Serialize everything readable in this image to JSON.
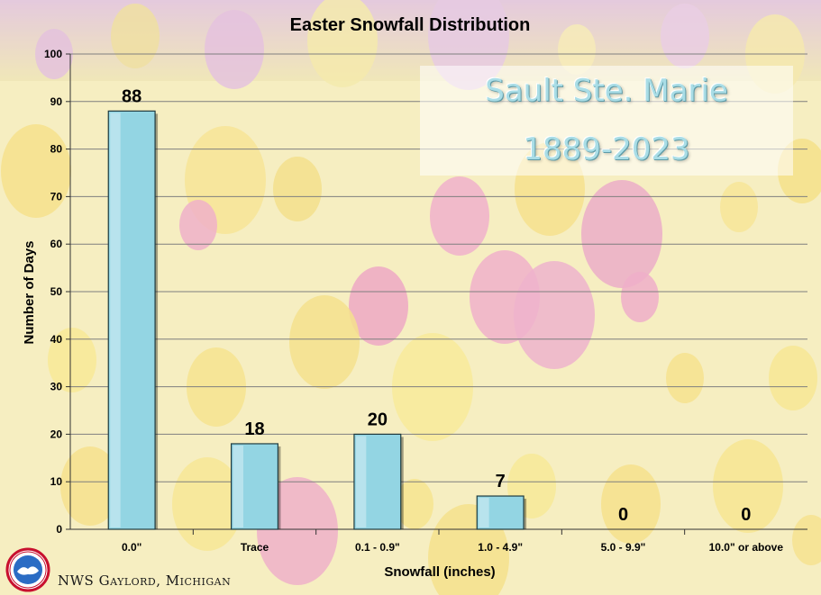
{
  "colors": {
    "bar_fill": "#93d5e3",
    "bar_edge": "#1f3b40",
    "title_text": "#a9dde6",
    "gridline": "#7f7f7f"
  },
  "overlay": {
    "line1": "Sault Ste. Marie",
    "line2": "1889-2023"
  },
  "credit": "NWS Gaylord, Michigan",
  "logo_icon": "nws-logo-icon",
  "chart_data": {
    "type": "bar",
    "title": "Easter Snowfall Distribution",
    "xlabel": "Snowfall (inches)",
    "ylabel": "Number of Days",
    "categories": [
      "0.0\"",
      "Trace",
      "0.1 - 0.9\"",
      "1.0 - 4.9\"",
      "5.0 - 9.9\"",
      "10.0\" or above"
    ],
    "values": [
      88,
      18,
      20,
      7,
      0,
      0
    ],
    "data_labels": [
      "88",
      "18",
      "20",
      "7",
      "0",
      "0"
    ],
    "ylim": [
      0,
      100
    ],
    "yticks": [
      0,
      10,
      20,
      30,
      40,
      50,
      60,
      70,
      80,
      90,
      100
    ],
    "grid": true,
    "legend": false
  }
}
